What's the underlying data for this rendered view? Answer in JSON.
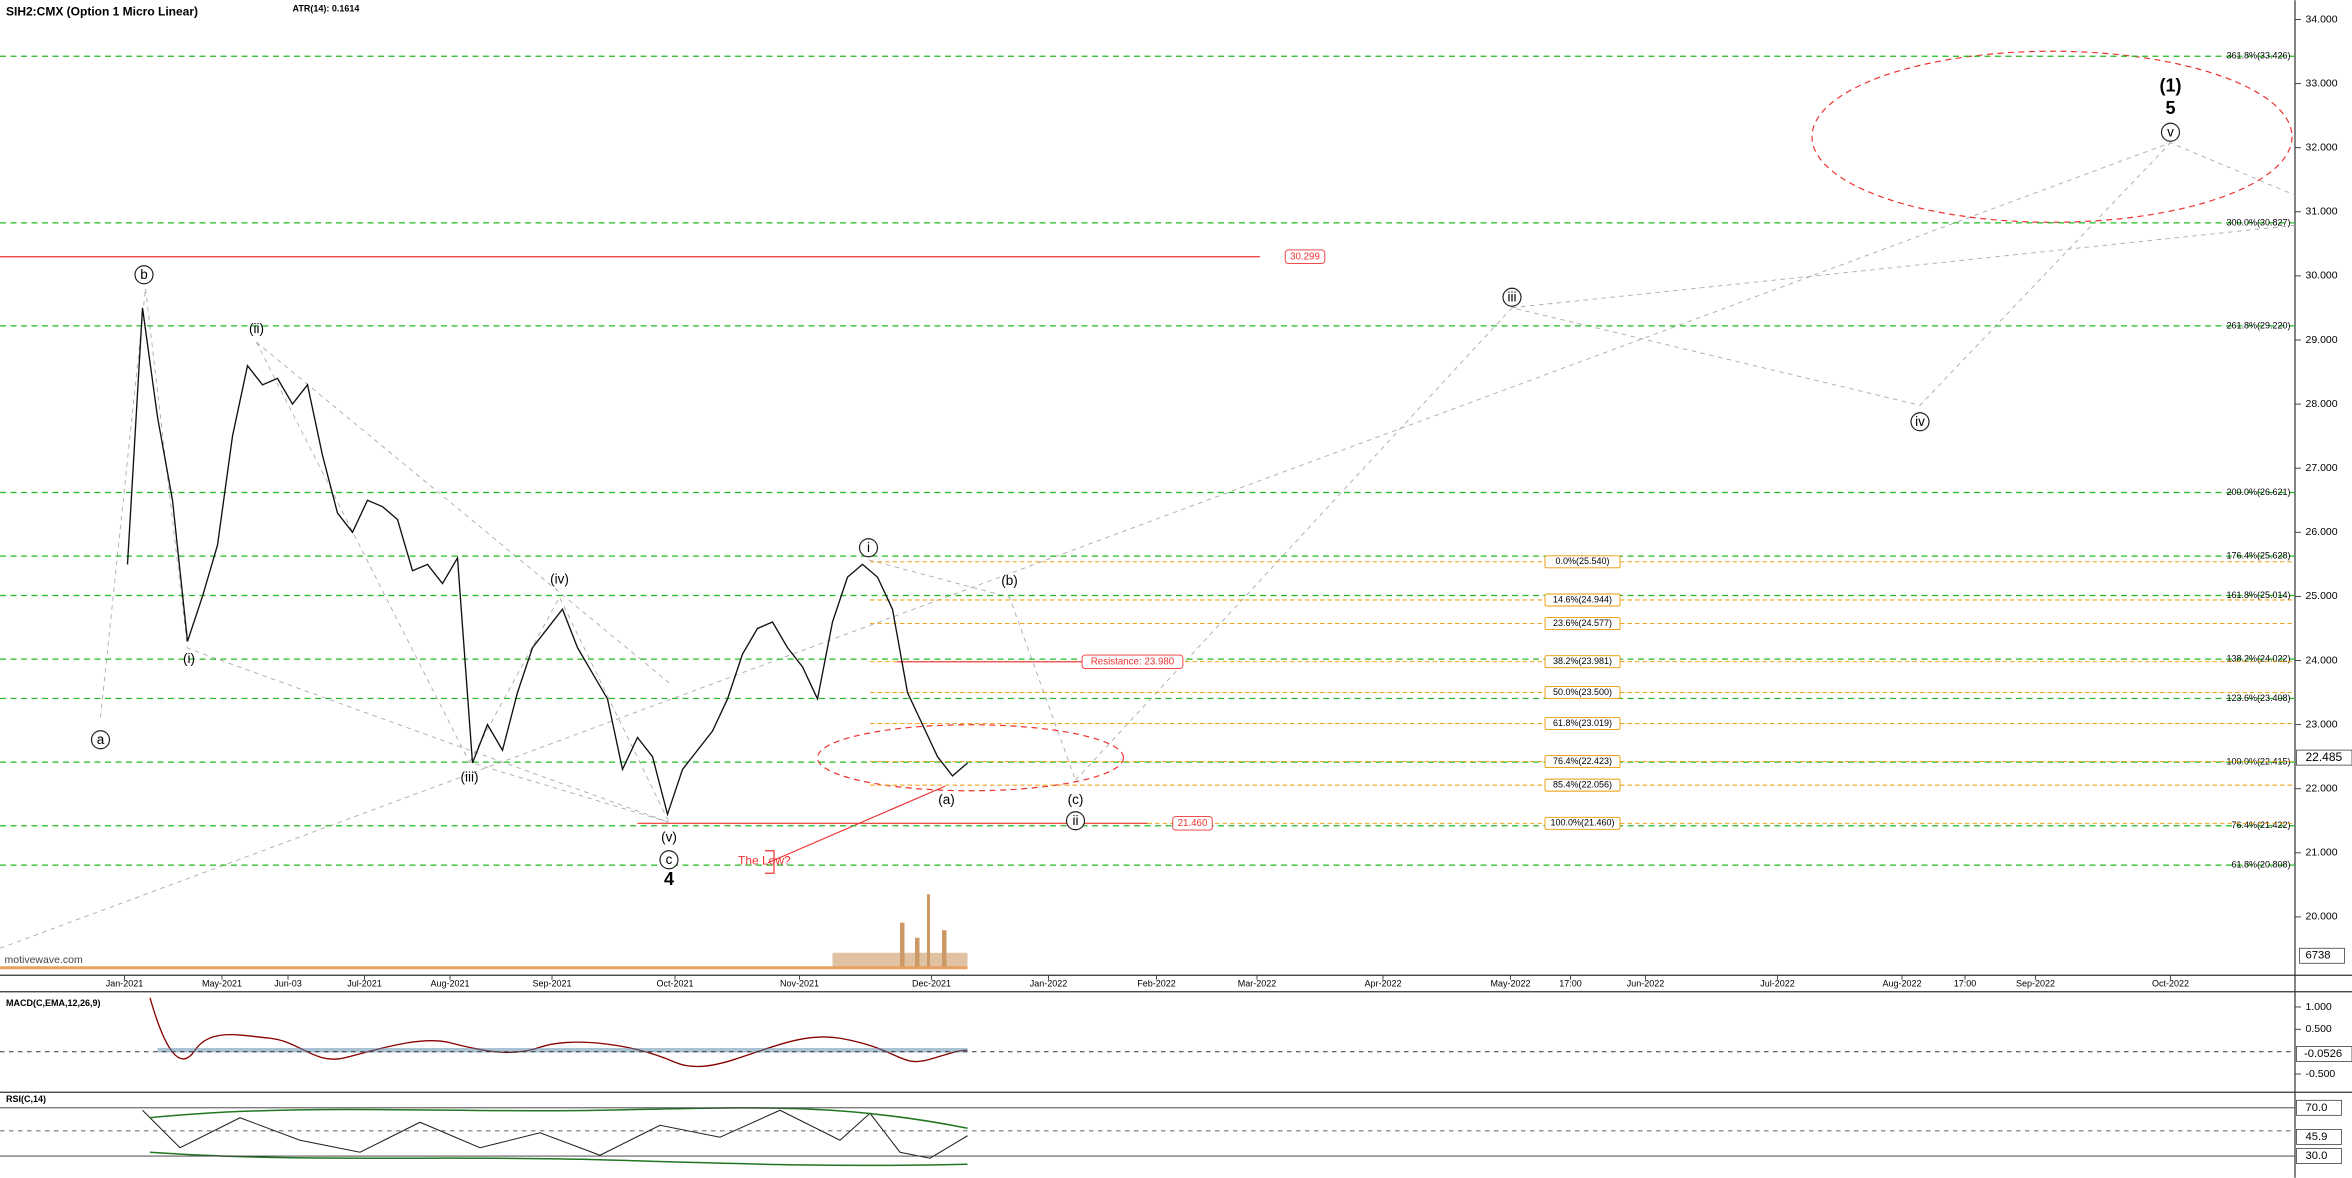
{
  "chart_data": {
    "type": "line",
    "title": "SIH2:CMX (Option 1 Micro Linear)",
    "subtitle": "ATR(14): 0.1614",
    "watermark": "motivewave.com",
    "color": "#111111",
    "values": [
      25.5,
      29.5,
      27.8,
      26.5,
      24.3,
      25.0,
      25.8,
      27.5,
      28.6,
      28.3,
      28.4,
      28.0,
      28.3,
      27.2,
      26.3,
      26.0,
      26.5,
      26.4,
      26.2,
      25.4,
      25.5,
      25.2,
      25.6,
      22.4,
      23.0,
      22.6,
      23.5,
      24.2,
      24.5,
      24.8,
      24.2,
      23.8,
      23.4,
      22.3,
      22.8,
      22.5,
      21.6,
      22.3,
      22.6,
      22.9,
      23.4,
      24.1,
      24.5,
      24.6,
      24.2,
      23.9,
      23.4,
      24.6,
      25.3,
      25.5,
      25.3,
      24.8,
      23.5,
      23.0,
      22.5,
      22.2,
      22.4
    ],
    "ylim": [
      19.09,
      34.3
    ],
    "yticks": [
      {
        "value": 20,
        "label": "20.000"
      },
      {
        "value": 21,
        "label": "21.000"
      },
      {
        "value": 22,
        "label": "22.000"
      },
      {
        "value": 23,
        "label": "23.000"
      },
      {
        "value": 24,
        "label": "24.000"
      },
      {
        "value": 25,
        "label": "25.000"
      },
      {
        "value": 26,
        "label": "26.000"
      },
      {
        "value": 27,
        "label": "27.000"
      },
      {
        "value": 28,
        "label": "28.000"
      },
      {
        "value": 29,
        "label": "29.000"
      },
      {
        "value": 30,
        "label": "30.000"
      },
      {
        "value": 31,
        "label": "31.000"
      },
      {
        "value": 32,
        "label": "32.000"
      },
      {
        "value": 33,
        "label": "33.000"
      },
      {
        "value": 34,
        "label": "34.000"
      }
    ],
    "last_price": {
      "value": 22.485,
      "label": "22.485"
    },
    "volume_label": "6738",
    "xtick_labels": [
      "Jan-2021",
      "May-2021",
      "Jun-03",
      "Jul-2021",
      "Aug-2021",
      "Sep-2021",
      "Oct-2021",
      "Nov-2021",
      "Dec-2021",
      "Jan-2022",
      "Feb-2022",
      "Mar-2022",
      "Apr-2022",
      "May-2022",
      "17:00",
      "Jun-2022",
      "Jul-2022",
      "Aug-2022",
      "17:00",
      "Sep-2022",
      "Oct-2022"
    ],
    "fib_levels": [
      {
        "value": 33.426,
        "label": "361.8%(33.426)"
      },
      {
        "value": 30.827,
        "label": "300.0%(30.827)"
      },
      {
        "value": 29.22,
        "label": "261.8%(29.220)"
      },
      {
        "value": 26.621,
        "label": "200.0%(26.621)"
      },
      {
        "value": 25.628,
        "label": "176.4%(25.628)"
      },
      {
        "value": 25.014,
        "label": "161.8%(25.014)"
      },
      {
        "value": 24.022,
        "label": "138.2%(24.022)"
      },
      {
        "value": 23.408,
        "label": "123.6%(23.408)"
      },
      {
        "value": 22.415,
        "label": "100.0%(22.415)"
      },
      {
        "value": 21.422,
        "label": "76.4%(21.422)"
      },
      {
        "value": 20.808,
        "label": "61.8%(20.808)"
      }
    ],
    "retracements": [
      {
        "value": 25.54,
        "label": "0.0%(25.540)"
      },
      {
        "value": 24.944,
        "label": "14.6%(24.944)"
      },
      {
        "value": 24.577,
        "label": "23.6%(24.577)"
      },
      {
        "value": 23.981,
        "label": "38.2%(23.981)"
      },
      {
        "value": 23.5,
        "label": "50.0%(23.500)"
      },
      {
        "value": 23.019,
        "label": "61.8%(23.019)"
      },
      {
        "value": 22.423,
        "label": "76.4%(22.423)"
      },
      {
        "value": 22.056,
        "label": "85.4%(22.056)"
      },
      {
        "value": 21.46,
        "label": "100.0%(21.460)"
      }
    ],
    "red_levels": [
      {
        "value": 30.299,
        "label": "30.299"
      },
      {
        "value": 21.46,
        "label": "21.460"
      },
      {
        "value": 23.98,
        "label": "Resistance: 23.980"
      }
    ],
    "annotation": "The Low?",
    "wave_labels": [
      {
        "label": "b",
        "circled": true
      },
      {
        "label": "a",
        "circled": true
      },
      {
        "label": "(i)",
        "circled": false
      },
      {
        "label": "(ii)",
        "circled": false
      },
      {
        "label": "(iii)",
        "circled": false
      },
      {
        "label": "(iv)",
        "circled": false
      },
      {
        "label": "(v)",
        "circled": false
      },
      {
        "label": "c",
        "circled": true
      },
      {
        "label": "4",
        "circled": false
      },
      {
        "label": "i",
        "circled": true
      },
      {
        "label": "(b)",
        "circled": false
      },
      {
        "label": "(a)",
        "circled": false
      },
      {
        "label": "(c)",
        "circled": false
      },
      {
        "label": "ii",
        "circled": true
      },
      {
        "label": "iii",
        "circled": true
      },
      {
        "label": "iv",
        "circled": true
      },
      {
        "label": "v",
        "circled": true
      },
      {
        "label": "(1)",
        "circled": false
      },
      {
        "label": "5",
        "circled": false
      }
    ],
    "macd": {
      "title": "MACD(C,EMA,12,26,9)",
      "ylim": [
        -0.909,
        1.341
      ],
      "yticks": [
        {
          "value": 1,
          "label": "1.000"
        },
        {
          "value": 0.5,
          "label": "0.500"
        },
        {
          "value": -0.5,
          "label": "-0.500"
        }
      ],
      "last": {
        "value": -0.0526,
        "label": "-0.0526"
      }
    },
    "rsi": {
      "title": "RSI(C,14)",
      "ylim": [
        12,
        82.9
      ],
      "yticks": [
        {
          "value": 70,
          "label": "70.0"
        },
        {
          "value": 30,
          "label": "30.0"
        }
      ],
      "last": {
        "value": 45.9,
        "label": "45.9"
      }
    }
  }
}
